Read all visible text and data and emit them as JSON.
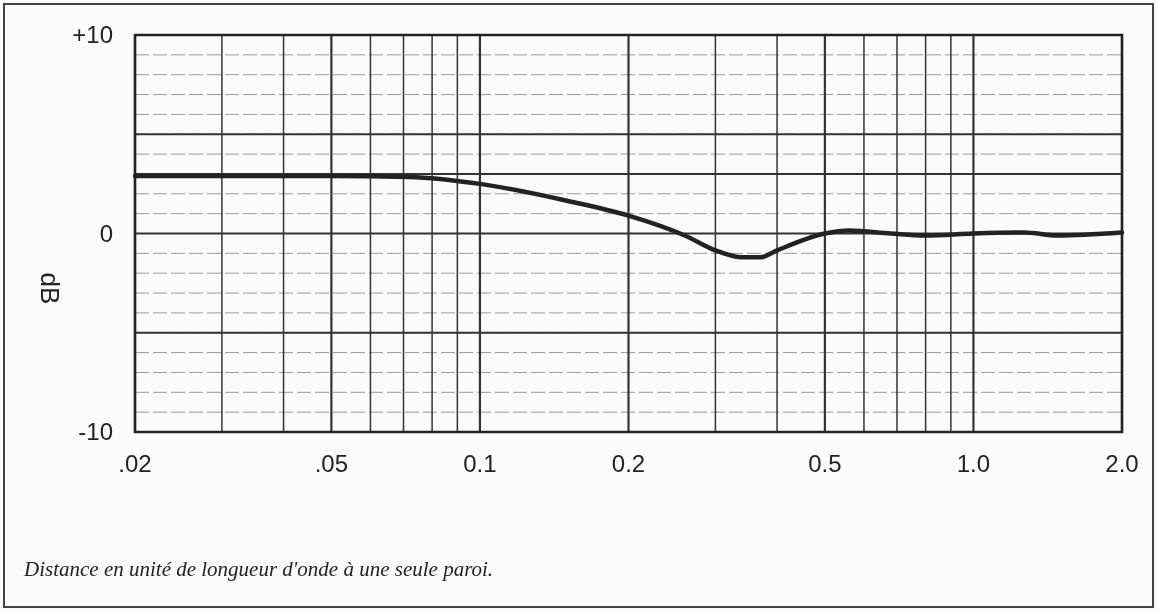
{
  "chart_data": {
    "type": "line",
    "ylabel": "dB",
    "log": "x",
    "grid": true,
    "marker": "none",
    "line_style": "solid",
    "xlim": [
      0.02,
      2.0
    ],
    "ylim": [
      -10,
      10
    ],
    "xticks": [
      {
        "value": 0.02,
        "label": ".02"
      },
      {
        "value": 0.03,
        "label": null
      },
      {
        "value": 0.04,
        "label": null
      },
      {
        "value": 0.05,
        "label": ".05"
      },
      {
        "value": 0.06,
        "label": null
      },
      {
        "value": 0.07,
        "label": null
      },
      {
        "value": 0.08,
        "label": null
      },
      {
        "value": 0.09,
        "label": null
      },
      {
        "value": 0.1,
        "label": "0.1"
      },
      {
        "value": 0.2,
        "label": "0.2"
      },
      {
        "value": 0.3,
        "label": null
      },
      {
        "value": 0.4,
        "label": null
      },
      {
        "value": 0.5,
        "label": "0.5"
      },
      {
        "value": 0.6,
        "label": null
      },
      {
        "value": 0.7,
        "label": null
      },
      {
        "value": 0.8,
        "label": null
      },
      {
        "value": 0.9,
        "label": null
      },
      {
        "value": 1.0,
        "label": "1.0"
      },
      {
        "value": 2.0,
        "label": "2.0"
      }
    ],
    "yticks": [
      {
        "value": 10,
        "label": "+10"
      },
      {
        "value": 5,
        "label": null
      },
      {
        "value": 3,
        "label": null
      },
      {
        "value": 0,
        "label": "0"
      },
      {
        "value": -5,
        "label": null
      },
      {
        "value": -10,
        "label": "-10"
      }
    ],
    "x": [
      0.02,
      0.05,
      0.072,
      0.1,
      0.15,
      0.2,
      0.26,
      0.3,
      0.34,
      0.37,
      0.4,
      0.5,
      0.56,
      0.68,
      0.8,
      1.0,
      1.27,
      1.48,
      2.0
    ],
    "series": [
      {
        "color": "#222222",
        "values": [
          2.9,
          2.9,
          2.85,
          2.5,
          1.65,
          0.9,
          -0.1,
          -0.85,
          -1.2,
          -1.2,
          -0.85,
          0,
          0.15,
          0,
          -0.1,
          0,
          0.05,
          -0.1,
          0.05
        ]
      }
    ],
    "annotations": [
      "Distance en unité de longueur d'onde à une seule paroi."
    ]
  }
}
